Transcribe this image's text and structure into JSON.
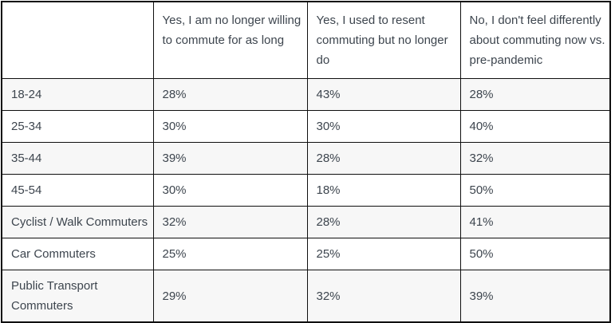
{
  "table": {
    "corner_label": "",
    "column_headers": [
      "Yes, I am no longer willing\nto commute for as long",
      "Yes, I used to resent\ncommuting but no longer\ndo",
      "No, I don't feel differently\nabout commuting now vs.\npre-pandemic"
    ],
    "rows": [
      {
        "label": "18-24",
        "values": [
          "28%",
          "43%",
          "28%"
        ]
      },
      {
        "label": "25-34",
        "values": [
          "30%",
          "30%",
          "40%"
        ]
      },
      {
        "label": "35-44",
        "values": [
          "39%",
          "28%",
          "32%"
        ]
      },
      {
        "label": "45-54",
        "values": [
          "30%",
          "18%",
          "50%"
        ]
      },
      {
        "label": "Cyclist / Walk Commuters",
        "values": [
          "32%",
          "28%",
          "41%"
        ]
      },
      {
        "label": "Car Commuters",
        "values": [
          "25%",
          "25%",
          "50%"
        ]
      },
      {
        "label": "Public Transport\nCommuters",
        "values": [
          "29%",
          "32%",
          "39%"
        ]
      }
    ]
  },
  "chart_data": {
    "type": "table",
    "title": "",
    "unit": "%",
    "categories": [
      "18-24",
      "25-34",
      "35-44",
      "45-54",
      "Cyclist / Walk Commuters",
      "Car Commuters",
      "Public Transport Commuters"
    ],
    "series": [
      {
        "name": "Yes, I am no longer willing to commute for as long",
        "values": [
          28,
          30,
          39,
          30,
          32,
          25,
          29
        ]
      },
      {
        "name": "Yes, I used to resent commuting but no longer do",
        "values": [
          43,
          30,
          28,
          18,
          28,
          25,
          32
        ]
      },
      {
        "name": "No, I don't feel differently about commuting now vs. pre-pandemic",
        "values": [
          28,
          40,
          32,
          50,
          41,
          50,
          39
        ]
      }
    ]
  },
  "colors": {
    "border": "#0f0f0f",
    "text": "#3d454e",
    "row_bg": "#ffffff",
    "row_alt_bg": "#f7f7f7"
  }
}
